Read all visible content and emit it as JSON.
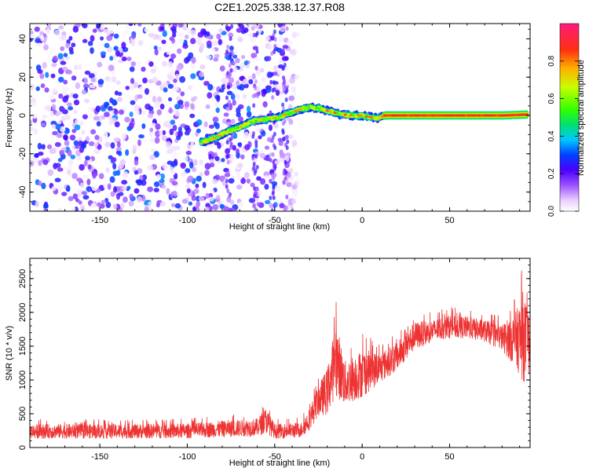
{
  "title": "C2E1.2025.338.12.37.R08",
  "chart_data": [
    {
      "type": "heatmap",
      "xlabel": "Height of straight line (km)",
      "ylabel": "Frequency (Hz)",
      "xlim": [
        -190,
        96
      ],
      "ylim": [
        -50,
        48
      ],
      "xticks": [
        -150,
        -100,
        -50,
        0,
        50
      ],
      "yticks": [
        -40,
        -20,
        0,
        20,
        40
      ],
      "colorbar": {
        "label": "Normalized spectral amplitude",
        "range": [
          0,
          1
        ],
        "ticks": [
          0.0,
          0.2,
          0.4,
          0.6,
          0.8
        ],
        "colors": [
          "#ffffff",
          "#e8ccff",
          "#b070ff",
          "#7a00ff",
          "#1010ff",
          "#00c8ff",
          "#00e060",
          "#30ff00",
          "#c8ff00",
          "#ff9000",
          "#ff2020",
          "#ff1a7a"
        ]
      },
      "ridge": [
        {
          "x": -92,
          "y": -14
        },
        {
          "x": -85,
          "y": -12
        },
        {
          "x": -78,
          "y": -9
        },
        {
          "x": -70,
          "y": -6
        },
        {
          "x": -62,
          "y": -3
        },
        {
          "x": -55,
          "y": -2
        },
        {
          "x": -48,
          "y": -1
        },
        {
          "x": -42,
          "y": 1
        },
        {
          "x": -36,
          "y": 3
        },
        {
          "x": -30,
          "y": 4.5
        },
        {
          "x": -24,
          "y": 3.5
        },
        {
          "x": -18,
          "y": 2
        },
        {
          "x": -12,
          "y": 0.5
        },
        {
          "x": -6,
          "y": 0
        },
        {
          "x": 0,
          "y": 0
        },
        {
          "x": 5,
          "y": -1
        },
        {
          "x": 9,
          "y": -1.5
        },
        {
          "x": 13,
          "y": 0
        },
        {
          "x": 20,
          "y": 0
        },
        {
          "x": 40,
          "y": 0
        },
        {
          "x": 60,
          "y": 0
        },
        {
          "x": 80,
          "y": 0
        },
        {
          "x": 95,
          "y": 0.5
        }
      ],
      "noise_region": {
        "x_range": [
          -190,
          -40
        ],
        "y_range": [
          -50,
          48
        ],
        "max_amplitude": 0.3
      }
    },
    {
      "type": "line",
      "xlabel": "Height of straight line (km)",
      "ylabel": "SNR (10 * v/v)",
      "xlim": [
        -190,
        96
      ],
      "ylim": [
        0,
        2800
      ],
      "xticks": [
        -150,
        -100,
        -50,
        0,
        50
      ],
      "yticks": [
        0,
        500,
        1000,
        1500,
        2000,
        2500
      ],
      "color": "#ee3333",
      "envelope": [
        {
          "x": -190,
          "lo": 60,
          "hi": 420
        },
        {
          "x": -150,
          "lo": 60,
          "hi": 420
        },
        {
          "x": -100,
          "lo": 60,
          "hi": 430
        },
        {
          "x": -80,
          "lo": 70,
          "hi": 480
        },
        {
          "x": -60,
          "lo": 80,
          "hi": 520
        },
        {
          "x": -55,
          "lo": 80,
          "hi": 720
        },
        {
          "x": -50,
          "lo": 60,
          "hi": 420
        },
        {
          "x": -35,
          "lo": 70,
          "hi": 450
        },
        {
          "x": -30,
          "lo": 150,
          "hi": 700
        },
        {
          "x": -25,
          "lo": 300,
          "hi": 1100
        },
        {
          "x": -20,
          "lo": 250,
          "hi": 1400
        },
        {
          "x": -15,
          "lo": 400,
          "hi": 2250
        },
        {
          "x": -10,
          "lo": 400,
          "hi": 1500
        },
        {
          "x": -5,
          "lo": 450,
          "hi": 1600
        },
        {
          "x": 0,
          "lo": 500,
          "hi": 1700
        },
        {
          "x": 10,
          "lo": 800,
          "hi": 1550
        },
        {
          "x": 20,
          "lo": 1000,
          "hi": 1700
        },
        {
          "x": 30,
          "lo": 1300,
          "hi": 2000
        },
        {
          "x": 40,
          "lo": 1450,
          "hi": 2000
        },
        {
          "x": 50,
          "lo": 1500,
          "hi": 2080
        },
        {
          "x": 60,
          "lo": 1500,
          "hi": 2050
        },
        {
          "x": 70,
          "lo": 1450,
          "hi": 2000
        },
        {
          "x": 80,
          "lo": 1300,
          "hi": 1950
        },
        {
          "x": 88,
          "lo": 900,
          "hi": 2300
        },
        {
          "x": 92,
          "lo": 500,
          "hi": 2780
        },
        {
          "x": 96,
          "lo": 800,
          "hi": 2200
        }
      ]
    }
  ]
}
